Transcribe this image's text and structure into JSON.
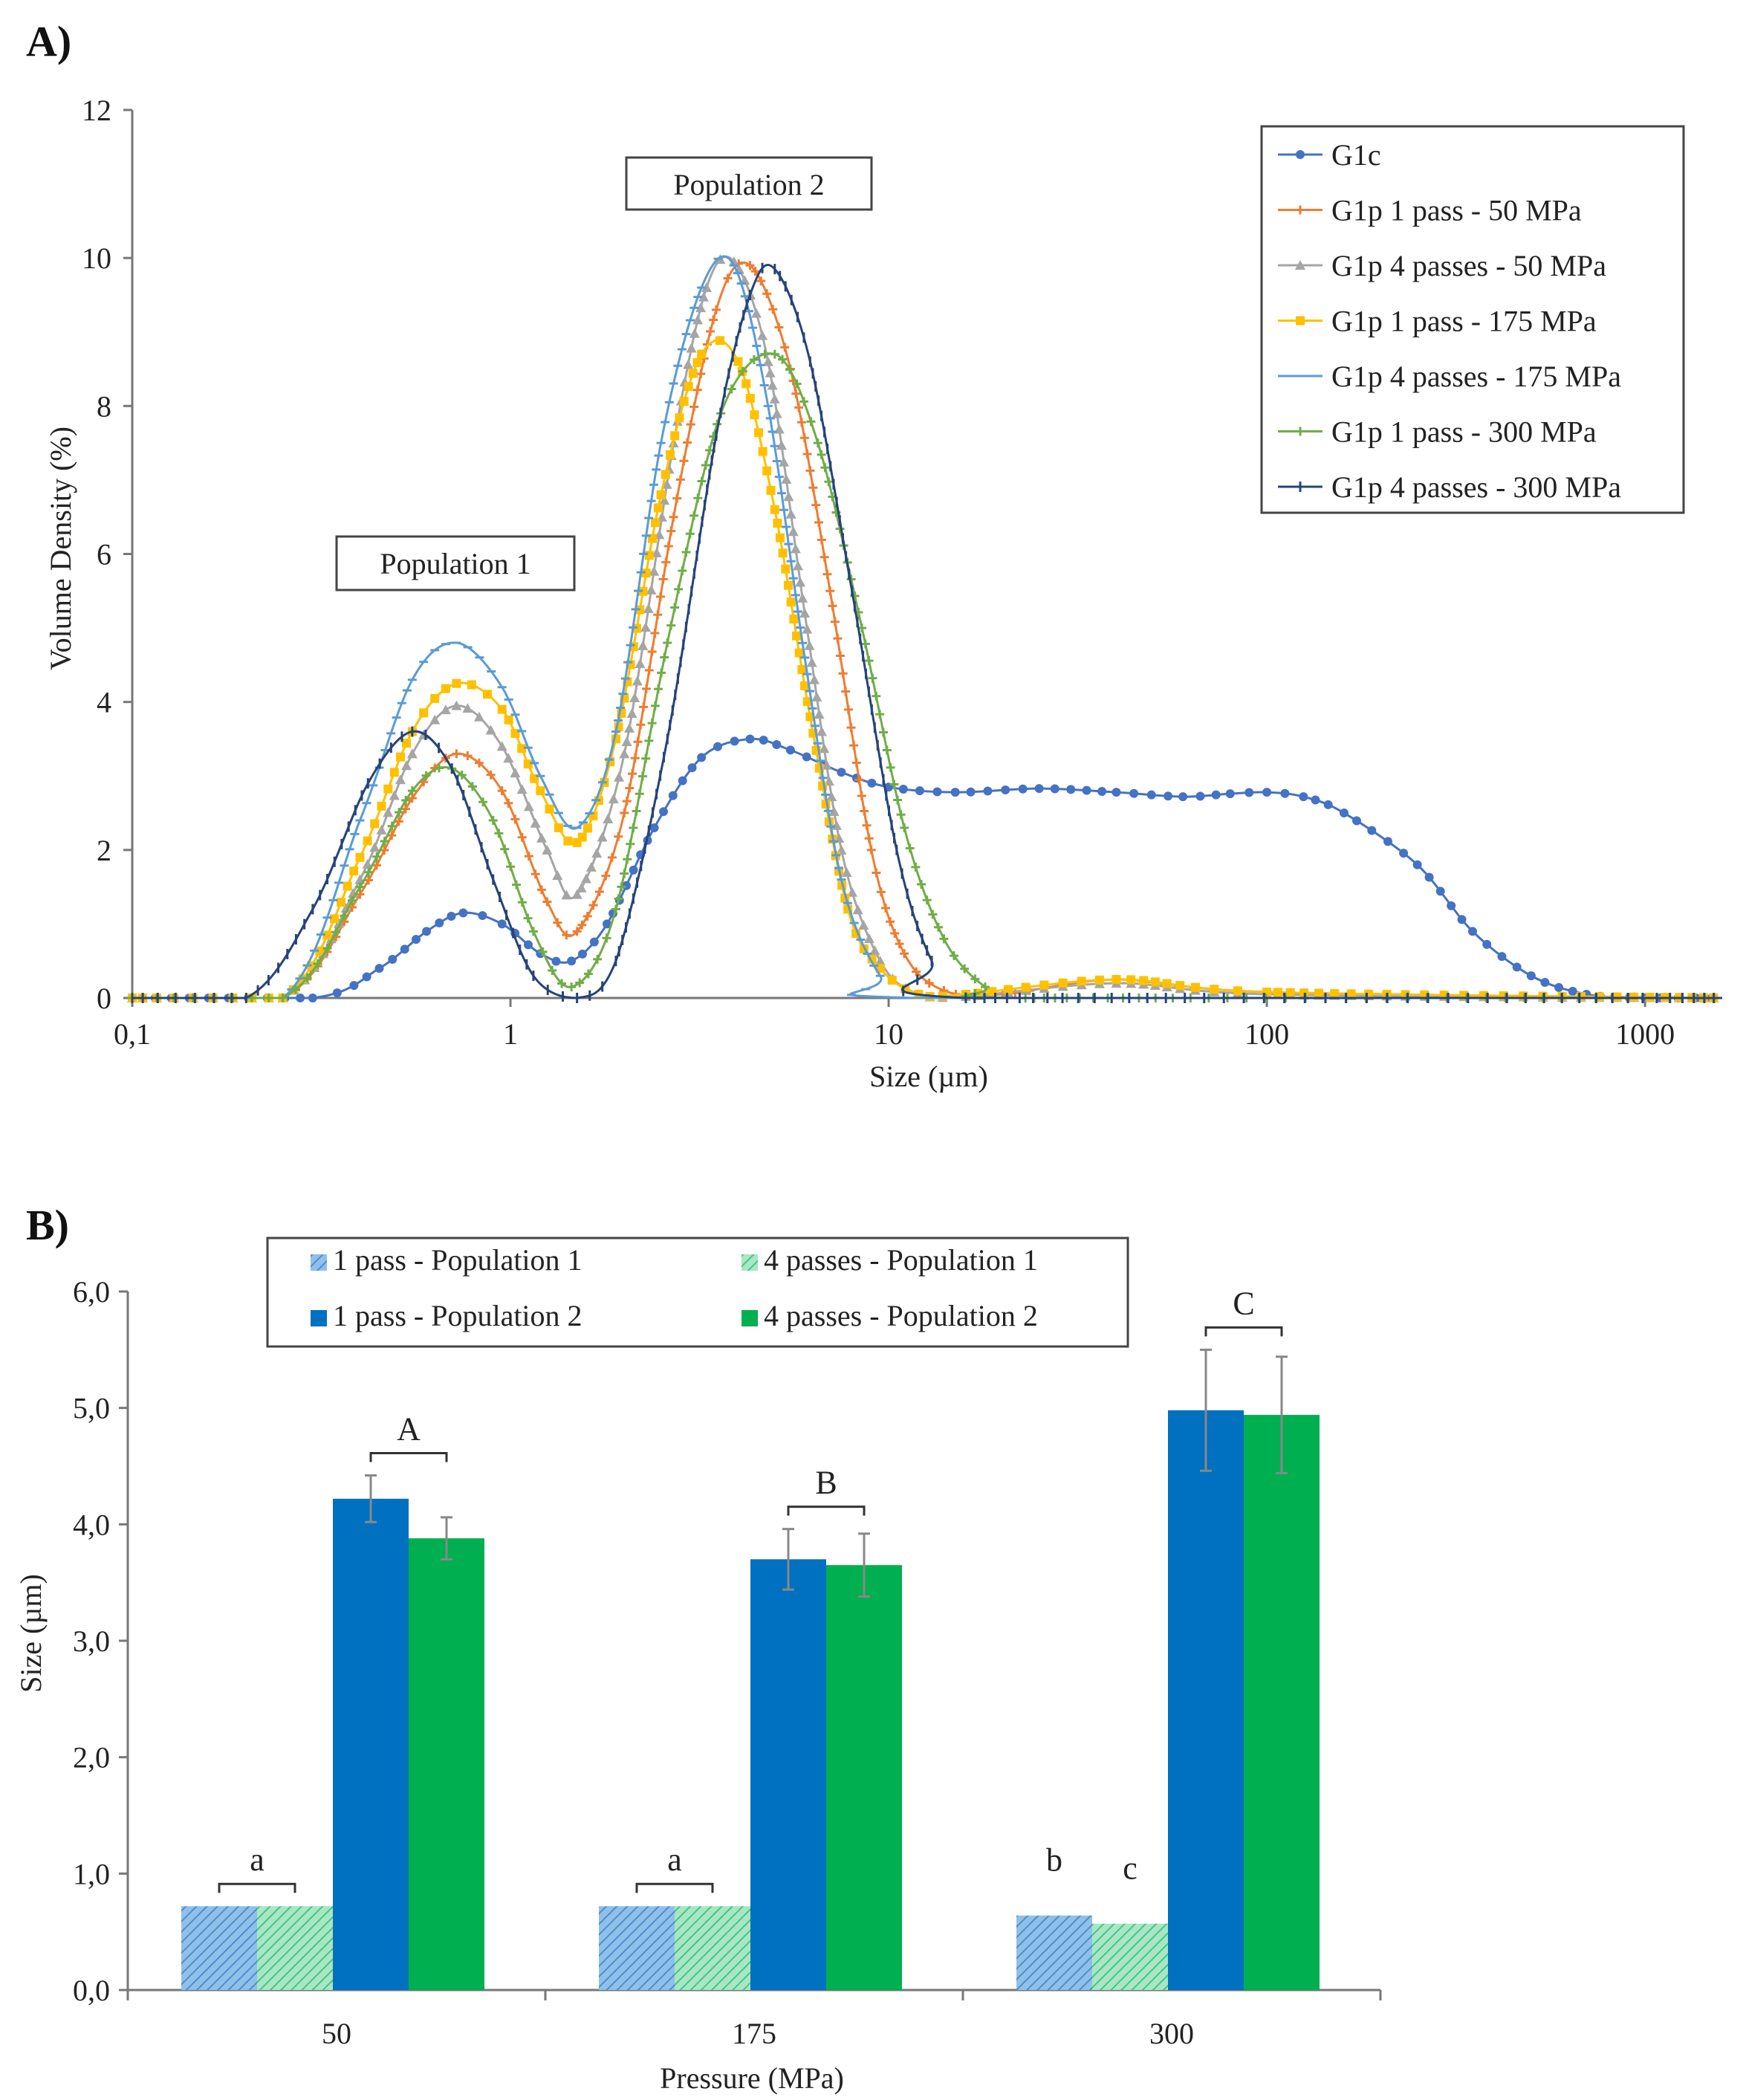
{
  "panel_a": {
    "label": "A)",
    "legend_entries": [
      {
        "name": "G1c",
        "color": "#4472C4",
        "marker": "circle"
      },
      {
        "name": "G1p 1 pass - 50 MPa",
        "color": "#ED7D31",
        "marker": "plus"
      },
      {
        "name": "G1p 4 passes - 50 MPa",
        "color": "#A5A5A5",
        "marker": "triangle"
      },
      {
        "name": "G1p 1 pass - 175 MPa",
        "color": "#FFC000",
        "marker": "square"
      },
      {
        "name": "G1p 4 passes - 175 MPa",
        "color": "#5B9BD5",
        "marker": "dash"
      },
      {
        "name": "G1p 1 pass - 300 MPa",
        "color": "#70AD47",
        "marker": "plus"
      },
      {
        "name": "G1p 4 passes - 300 MPa",
        "color": "#264478",
        "marker": "bar"
      }
    ],
    "annotations": [
      "Population 1",
      "Population 2"
    ]
  },
  "panel_b": {
    "label": "B)",
    "legend_entries": [
      {
        "name": "1 pass - Population 1",
        "color": "#5B9BD5",
        "pattern": "hatch-blue"
      },
      {
        "name": "4 passes - Population 1",
        "color": "#5DD39E",
        "pattern": "hatch-green"
      },
      {
        "name": "1 pass - Population 2",
        "color": "#0070C0",
        "pattern": "solid"
      },
      {
        "name": "4 passes - Population 2",
        "color": "#00B050",
        "pattern": "solid"
      }
    ],
    "significance": [
      {
        "group": 0,
        "span": "pop1",
        "letter": "a"
      },
      {
        "group": 0,
        "span": "pop2",
        "letter": "A"
      },
      {
        "group": 1,
        "span": "pop1",
        "letter": "a"
      },
      {
        "group": 1,
        "span": "pop2",
        "letter": "B"
      },
      {
        "group": 2,
        "span": "bar0",
        "letter": "b"
      },
      {
        "group": 2,
        "span": "bar1",
        "letter": "c"
      },
      {
        "group": 2,
        "span": "pop2",
        "letter": "C"
      }
    ]
  },
  "chart_data": [
    {
      "type": "line",
      "xscale": "log",
      "xlabel": "Size (µm)",
      "ylabel": "Volume Density (%)",
      "xlim": [
        0.1,
        1600
      ],
      "ylim": [
        0,
        12
      ],
      "xticks": [
        0.1,
        1,
        10,
        100,
        1000
      ],
      "xtick_labels": [
        "0,1",
        "1",
        "10",
        "100",
        "1000"
      ],
      "yticks": [
        0,
        2,
        4,
        6,
        8,
        10,
        12
      ],
      "ytick_labels": [
        "0",
        "2",
        "4",
        "6",
        "8",
        "10",
        "12"
      ],
      "grid": false,
      "legend": "top-right",
      "series": [
        {
          "name": "G1c",
          "color": "#4472C4",
          "marker": "circle",
          "x": [
            0.1,
            0.3,
            0.45,
            0.6,
            0.75,
            0.95,
            1.2,
            1.45,
            1.8,
            2.4,
            3.2,
            4.3,
            5.5,
            7.5,
            10,
            15,
            25,
            40,
            60,
            80,
            100,
            125,
            160,
            250,
            350,
            500,
            700,
            1000,
            1600
          ],
          "y": [
            0,
            0,
            0.4,
            0.9,
            1.15,
            1.0,
            0.6,
            0.5,
            1.0,
            2.3,
            3.25,
            3.5,
            3.35,
            3.05,
            2.85,
            2.78,
            2.83,
            2.78,
            2.72,
            2.76,
            2.78,
            2.72,
            2.5,
            1.8,
            0.9,
            0.3,
            0.05,
            0,
            0
          ]
        },
        {
          "name": "G1p 1 pass - 50 MPa",
          "color": "#ED7D31",
          "marker": "plus",
          "x": [
            0.1,
            0.25,
            0.4,
            0.55,
            0.72,
            0.95,
            1.25,
            1.5,
            2.0,
            2.7,
            3.5,
            4.3,
            5.5,
            7.0,
            9.0,
            11,
            14,
            20,
            40,
            100,
            1600
          ],
          "y": [
            0,
            0,
            1.4,
            2.7,
            3.3,
            2.8,
            1.3,
            0.9,
            2.5,
            6.5,
            9.3,
            9.9,
            8.5,
            5.5,
            2.0,
            0.6,
            0.1,
            0.05,
            0.25,
            0.08,
            0
          ]
        },
        {
          "name": "G1p 4 passes - 50 MPa",
          "color": "#A5A5A5",
          "marker": "triangle",
          "x": [
            0.1,
            0.25,
            0.4,
            0.55,
            0.72,
            0.95,
            1.25,
            1.5,
            2.0,
            2.7,
            3.3,
            3.9,
            4.8,
            6.0,
            7.5,
            9.5,
            12,
            16,
            40,
            100,
            1600
          ],
          "y": [
            0,
            0,
            1.6,
            3.3,
            3.95,
            3.4,
            2.0,
            1.4,
            3.3,
            7.5,
            9.6,
            9.95,
            8.6,
            5.2,
            2.0,
            0.5,
            0.05,
            0.02,
            0.2,
            0.05,
            0
          ]
        },
        {
          "name": "G1p 1 pass - 175 MPa",
          "color": "#FFC000",
          "marker": "square",
          "x": [
            0.1,
            0.25,
            0.4,
            0.55,
            0.72,
            0.95,
            1.2,
            1.5,
            1.9,
            2.5,
            3.2,
            4.0,
            5.0,
            6.2,
            7.8,
            9.5,
            12,
            16,
            40,
            100,
            1600
          ],
          "y": [
            0,
            0,
            1.9,
            3.6,
            4.25,
            3.9,
            2.8,
            2.1,
            3.5,
            6.8,
            8.7,
            8.6,
            6.6,
            3.8,
            1.2,
            0.4,
            0.05,
            0.05,
            0.25,
            0.08,
            0
          ]
        },
        {
          "name": "G1p 4 passes - 175 MPa",
          "color": "#5B9BD5",
          "marker": "dash",
          "x": [
            0.1,
            0.25,
            0.4,
            0.55,
            0.72,
            0.95,
            1.2,
            1.5,
            1.9,
            2.5,
            3.2,
            3.9,
            4.8,
            6.0,
            7.5,
            9.5,
            12,
            1600
          ],
          "y": [
            0,
            0,
            2.4,
            4.3,
            4.8,
            4.2,
            3.0,
            2.3,
            3.6,
            7.5,
            9.6,
            9.9,
            8.0,
            4.6,
            1.6,
            0.3,
            0,
            0
          ]
        },
        {
          "name": "G1p 1 pass - 300 MPa",
          "color": "#70AD47",
          "marker": "plus",
          "x": [
            0.1,
            0.25,
            0.4,
            0.55,
            0.7,
            0.9,
            1.15,
            1.45,
            1.9,
            2.6,
            3.6,
            5.0,
            6.5,
            8.5,
            11,
            14,
            18,
            23,
            1600
          ],
          "y": [
            0,
            0,
            1.5,
            2.8,
            3.1,
            2.4,
            0.9,
            0.15,
            1.2,
            4.8,
            7.9,
            8.7,
            7.5,
            5.0,
            2.3,
            0.8,
            0.15,
            0,
            0
          ]
        },
        {
          "name": "G1p 4 passes - 300 MPa",
          "color": "#264478",
          "marker": "bar",
          "x": [
            0.1,
            0.2,
            0.3,
            0.42,
            0.55,
            0.7,
            0.9,
            1.15,
            1.5,
            1.9,
            2.6,
            3.5,
            4.3,
            5.0,
            6.2,
            8.0,
            10.5,
            13,
            16,
            1600
          ],
          "y": [
            0,
            0,
            1.2,
            2.9,
            3.6,
            3.1,
            1.6,
            0.3,
            0,
            0.5,
            3.5,
            7.6,
            9.5,
            9.85,
            8.6,
            5.5,
            2.0,
            0.5,
            0,
            0
          ]
        }
      ]
    },
    {
      "type": "bar",
      "xlabel": "Pressure (MPa)",
      "ylabel": "Size (µm)",
      "ylim": [
        0,
        6
      ],
      "yticks": [
        0,
        1,
        2,
        3,
        4,
        5,
        6
      ],
      "ytick_labels": [
        "0,0",
        "1,0",
        "2,0",
        "3,0",
        "4,0",
        "5,0",
        "6,0"
      ],
      "categories": [
        "50",
        "175",
        "300"
      ],
      "legend": "top",
      "series": [
        {
          "name": "1 pass - Population 1",
          "values": [
            0.72,
            0.72,
            0.64
          ],
          "errors": [
            0,
            0,
            0
          ]
        },
        {
          "name": "4 passes - Population 1",
          "values": [
            0.72,
            0.72,
            0.57
          ],
          "errors": [
            0,
            0,
            0
          ]
        },
        {
          "name": "1 pass - Population 2",
          "values": [
            4.22,
            3.7,
            4.98
          ],
          "errors": [
            0.2,
            0.26,
            0.52
          ]
        },
        {
          "name": "4 passes - Population 2",
          "values": [
            3.88,
            3.65,
            4.94
          ],
          "errors": [
            0.18,
            0.27,
            0.5
          ]
        }
      ]
    }
  ]
}
